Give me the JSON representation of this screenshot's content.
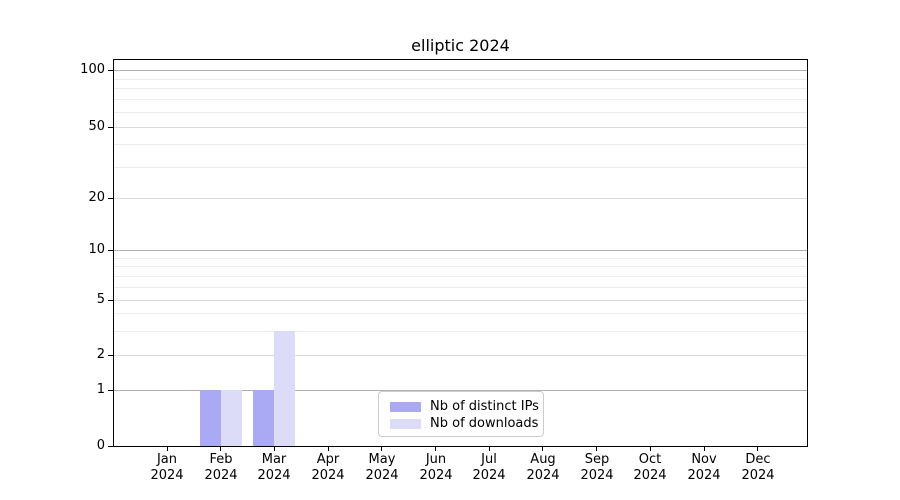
{
  "title": "elliptic 2024",
  "chart_data": {
    "type": "bar",
    "title": "elliptic 2024",
    "categories": [
      "Jan 2024",
      "Feb 2024",
      "Mar 2024",
      "Apr 2024",
      "May 2024",
      "Jun 2024",
      "Jul 2024",
      "Aug 2024",
      "Sep 2024",
      "Oct 2024",
      "Nov 2024",
      "Dec 2024"
    ],
    "x_months": [
      "Jan",
      "Feb",
      "Mar",
      "Apr",
      "May",
      "Jun",
      "Jul",
      "Aug",
      "Sep",
      "Oct",
      "Nov",
      "Dec"
    ],
    "x_year": "2024",
    "series": [
      {
        "name": "Nb of distinct IPs",
        "color": "#a9a9f4",
        "values": [
          0,
          1,
          1,
          0,
          0,
          0,
          0,
          0,
          0,
          0,
          0,
          0
        ]
      },
      {
        "name": "Nb of downloads",
        "color": "#dcdcf8",
        "values": [
          0,
          1,
          3,
          0,
          0,
          0,
          0,
          0,
          0,
          0,
          0,
          0
        ]
      }
    ],
    "yscale": "symlog",
    "ylim": [
      0,
      120
    ],
    "yticks": [
      0,
      1,
      2,
      5,
      10,
      20,
      50,
      100
    ],
    "minor_yticks": [
      3,
      4,
      6,
      7,
      8,
      9,
      30,
      40,
      60,
      70,
      80,
      90
    ],
    "grid": "horizontal major and minor",
    "legend_position": "lower center",
    "colors": {
      "axis": "#000000",
      "major_grid": "#b0b0b0",
      "mid_grid": "#dbdbdb",
      "minor_grid": "#ececec",
      "legend_border": "#cccccc"
    }
  }
}
